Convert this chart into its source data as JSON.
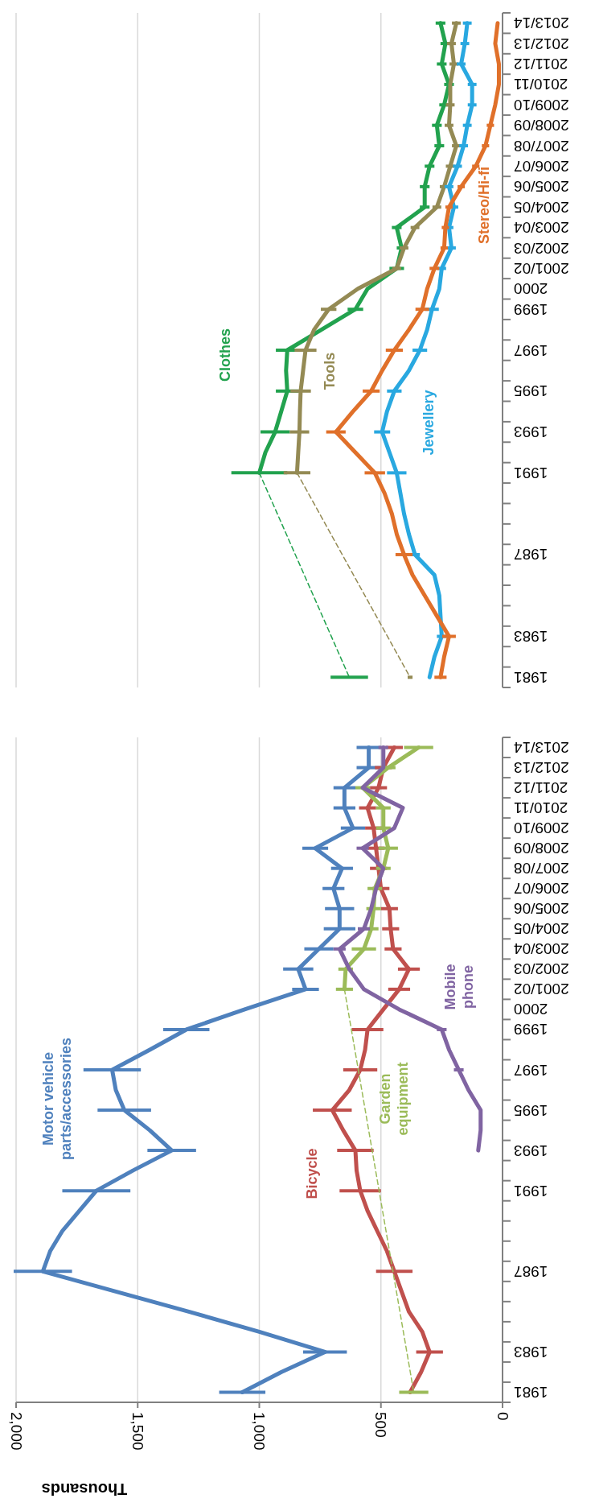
{
  "chart_data": [
    {
      "type": "line",
      "orientation": "horizontal",
      "xlabel": "Thousands",
      "line_style": "solid",
      "grid": "x",
      "categories": [
        "2013/14",
        "2012/13",
        "2011/12",
        "2010/11",
        "2009/10",
        "2008/09",
        "2007/08",
        "2006/07",
        "2005/06",
        "2004/05",
        "2003/04",
        "2002/03",
        "2001/02",
        "2000",
        "1999",
        null,
        "1997",
        null,
        "1995",
        null,
        "1993",
        null,
        "1991",
        null,
        null,
        null,
        "1987",
        null,
        null,
        null,
        "1983",
        null,
        "1981"
      ],
      "xlim": [
        2000,
        0
      ],
      "xticks": [
        {
          "value": 2000,
          "label": "2,000"
        },
        {
          "value": 1500,
          "label": "1,500"
        },
        {
          "value": 1000,
          "label": "1,000"
        },
        500,
        0
      ],
      "series": [
        {
          "name": "Motor vehicle parts/accessories",
          "color": "#4f81bd",
          "values": [
            550,
            550,
            650,
            650,
            615,
            770,
            660,
            695,
            670,
            670,
            755,
            840,
            810,
            1060,
            1300,
            1450,
            1605,
            1590,
            1555,
            1450,
            1360,
            1520,
            1670,
            1740,
            1810,
            1860,
            1890,
            1590,
            1290,
            1000,
            730,
            910,
            1070
          ],
          "errors": [
            50,
            50,
            45,
            45,
            50,
            53,
            45,
            45,
            60,
            65,
            60,
            62,
            55,
            null,
            95,
            null,
            118,
            null,
            110,
            null,
            100,
            null,
            140,
            null,
            null,
            null,
            120,
            null,
            null,
            null,
            90,
            null,
            95
          ]
        },
        {
          "name": "Bicycle",
          "color": "#c0504d",
          "values": [
            445,
            490,
            510,
            555,
            530,
            520,
            510,
            500,
            465,
            460,
            450,
            385,
            425,
            490,
            555,
            565,
            585,
            630,
            700,
            655,
            605,
            600,
            585,
            555,
            515,
            475,
            445,
            415,
            385,
            330,
            300,
            335,
            380
          ],
          "errors": [
            35,
            35,
            35,
            35,
            35,
            35,
            35,
            35,
            35,
            35,
            35,
            45,
            45,
            null,
            65,
            null,
            70,
            null,
            80,
            null,
            75,
            null,
            85,
            null,
            null,
            null,
            75,
            null,
            null,
            null,
            55,
            null,
            null
          ]
        },
        {
          "name": "Garden equipment",
          "color": "#9bbb59",
          "values": [
            345,
            470,
            575,
            490,
            490,
            470,
            490,
            525,
            530,
            540,
            570,
            645,
            650,
            null,
            null,
            null,
            null,
            null,
            null,
            null,
            null,
            null,
            null,
            null,
            null,
            null,
            null,
            null,
            null,
            null,
            null,
            null,
            null
          ],
          "errors": [
            60,
            30,
            30,
            30,
            30,
            40,
            30,
            30,
            30,
            30,
            50,
            30,
            35,
            null,
            null,
            null,
            null,
            null,
            null,
            null,
            null,
            null,
            null,
            null,
            null,
            null,
            null,
            null,
            null,
            null,
            null,
            null,
            null
          ]
        },
        {
          "color": "#9bbb59",
          "line_style": "dashed",
          "values": [
            null,
            null,
            null,
            null,
            null,
            null,
            null,
            null,
            null,
            null,
            null,
            null,
            650,
            null,
            null,
            null,
            null,
            null,
            null,
            null,
            null,
            null,
            null,
            null,
            null,
            null,
            null,
            null,
            null,
            null,
            null,
            null,
            365
          ],
          "errors": [
            null,
            null,
            null,
            null,
            null,
            null,
            null,
            null,
            null,
            null,
            null,
            null,
            null,
            null,
            null,
            null,
            null,
            null,
            null,
            null,
            null,
            null,
            null,
            null,
            null,
            null,
            null,
            null,
            null,
            null,
            null,
            null,
            60
          ]
        },
        {
          "name": "Mobile phone",
          "color": "#8064a2",
          "values": [
            490,
            490,
            575,
            410,
            445,
            575,
            490,
            520,
            540,
            570,
            670,
            630,
            570,
            425,
            250,
            220,
            180,
            140,
            90,
            90,
            100,
            null,
            null,
            null,
            null,
            null,
            null,
            null,
            null,
            null,
            null,
            null,
            null
          ],
          "errors": [
            20,
            null,
            null,
            null,
            null,
            25,
            null,
            null,
            null,
            25,
            25,
            null,
            null,
            null,
            20,
            null,
            20,
            null,
            null,
            null,
            null,
            null,
            null,
            null,
            null,
            null,
            null,
            null,
            null,
            null,
            null,
            null,
            null
          ]
        }
      ]
    },
    {
      "type": "line",
      "orientation": "horizontal",
      "line_style": "solid",
      "grid": "x",
      "tick_labels": "y",
      "categories": [
        "2013/14",
        "2012/13",
        "2011/12",
        "2010/11",
        "2009/10",
        "2008/09",
        "2007/08",
        "2006/07",
        "2005/06",
        "2004/05",
        "2003/04",
        "2002/03",
        "2001/02",
        "2000",
        "1999",
        null,
        "1997",
        null,
        "1995",
        null,
        "1993",
        null,
        "1991",
        null,
        null,
        null,
        "1987",
        null,
        null,
        null,
        "1983",
        null,
        "1981"
      ],
      "xlim": [
        2000,
        0
      ],
      "xticks": [
        2000,
        1500,
        1000,
        500,
        0
      ],
      "series": [
        {
          "name": "Clothes",
          "color": "#22a24e",
          "values": [
            255,
            235,
            250,
            220,
            240,
            270,
            260,
            300,
            320,
            320,
            435,
            415,
            435,
            555,
            605,
            745,
            885,
            890,
            885,
            910,
            935,
            975,
            1000,
            null,
            null,
            null,
            null,
            null,
            null,
            null,
            null,
            null,
            null
          ],
          "errors": [
            20,
            20,
            20,
            20,
            20,
            20,
            20,
            20,
            20,
            20,
            20,
            20,
            30,
            null,
            32,
            null,
            47,
            null,
            47,
            null,
            60,
            null,
            115,
            null,
            null,
            null,
            null,
            null,
            null,
            null,
            null,
            null,
            null
          ]
        },
        {
          "color": "#22a24e",
          "line_style": "dashed",
          "values": [
            null,
            null,
            null,
            null,
            null,
            null,
            null,
            null,
            null,
            null,
            null,
            null,
            null,
            null,
            null,
            null,
            null,
            null,
            null,
            null,
            null,
            null,
            1000,
            null,
            null,
            null,
            null,
            null,
            null,
            null,
            null,
            null,
            630
          ],
          "errors": [
            null,
            null,
            null,
            null,
            null,
            null,
            null,
            null,
            null,
            null,
            null,
            null,
            null,
            null,
            null,
            null,
            null,
            null,
            null,
            null,
            null,
            null,
            null,
            null,
            null,
            null,
            null,
            null,
            null,
            null,
            null,
            null,
            77
          ]
        },
        {
          "name": "Tools",
          "color": "#948a54",
          "values": [
            190,
            210,
            200,
            215,
            215,
            220,
            190,
            215,
            240,
            270,
            360,
            405,
            435,
            595,
            715,
            775,
            810,
            820,
            830,
            833,
            835,
            840,
            845,
            null,
            null,
            null,
            null,
            null,
            null,
            null,
            null,
            null,
            null
          ],
          "errors": [
            18,
            18,
            18,
            null,
            18,
            18,
            18,
            18,
            18,
            18,
            18,
            18,
            18,
            null,
            32,
            null,
            45,
            null,
            42,
            null,
            40,
            null,
            55,
            null,
            null,
            null,
            null,
            null,
            null,
            null,
            null,
            null,
            null
          ]
        },
        {
          "color": "#948a54",
          "line_style": "dashed",
          "values": [
            null,
            null,
            null,
            null,
            null,
            null,
            null,
            null,
            null,
            null,
            null,
            null,
            null,
            null,
            null,
            null,
            null,
            null,
            null,
            null,
            null,
            null,
            845,
            null,
            null,
            null,
            null,
            null,
            null,
            null,
            null,
            null,
            380
          ],
          "errors": [
            null,
            null,
            null,
            null,
            null,
            null,
            null,
            null,
            null,
            null,
            null,
            null,
            null,
            null,
            null,
            null,
            null,
            null,
            null,
            null,
            null,
            null,
            null,
            null,
            null,
            null,
            null,
            null,
            null,
            null,
            null,
            null,
            10
          ]
        },
        {
          "name": "Jewellery",
          "color": "#29a8e0",
          "values": [
            145,
            155,
            170,
            125,
            125,
            145,
            160,
            185,
            220,
            200,
            220,
            210,
            250,
            260,
            290,
            310,
            340,
            385,
            445,
            475,
            495,
            465,
            435,
            420,
            405,
            385,
            360,
            280,
            260,
            255,
            250,
            280,
            300
          ],
          "errors": [
            18,
            18,
            18,
            18,
            18,
            18,
            18,
            18,
            18,
            18,
            18,
            18,
            18,
            null,
            28,
            null,
            30,
            null,
            30,
            null,
            33,
            null,
            40,
            null,
            null,
            null,
            20,
            null,
            null,
            null,
            20,
            null,
            null
          ]
        },
        {
          "name": "Stereo/Hi-fi",
          "color": "#e0702a",
          "values": [
            20,
            30,
            15,
            15,
            30,
            50,
            70,
            110,
            170,
            220,
            235,
            240,
            280,
            310,
            330,
            385,
            445,
            495,
            540,
            615,
            685,
            605,
            525,
            485,
            455,
            435,
            405,
            370,
            320,
            270,
            220,
            240,
            255
          ],
          "errors": [
            null,
            null,
            null,
            null,
            null,
            15,
            15,
            15,
            15,
            15,
            15,
            15,
            20,
            null,
            28,
            null,
            35,
            null,
            35,
            null,
            40,
            null,
            42,
            null,
            null,
            null,
            35,
            null,
            null,
            null,
            28,
            null,
            25
          ]
        }
      ]
    }
  ]
}
